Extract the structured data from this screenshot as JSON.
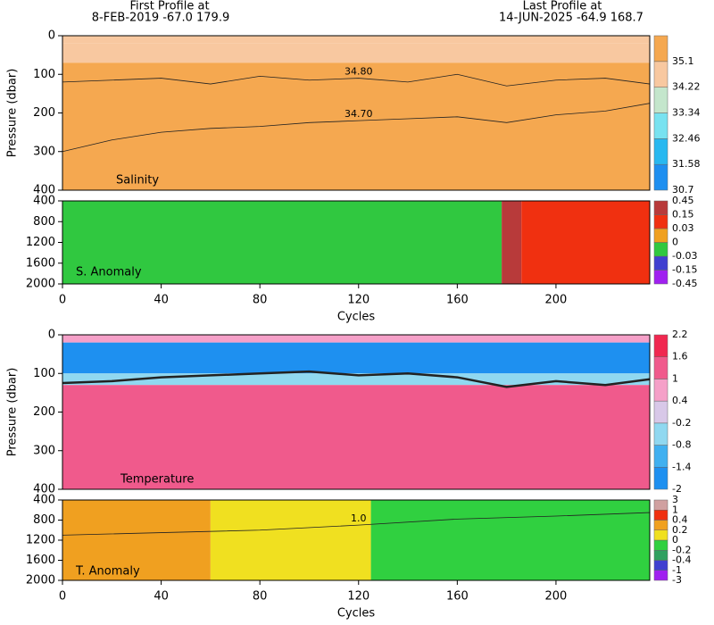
{
  "header": {
    "first_label": "First Profile at",
    "first_value": "8-FEB-2019    -67.0  179.9",
    "last_label": "Last Profile at",
    "last_value": "14-JUN-2025    -64.9  168.7"
  },
  "chart_data": [
    {
      "type": "section",
      "title": "Salinity",
      "ylabel": "Pressure (dbar)",
      "xlim": [
        0,
        238
      ],
      "ylim": [
        0,
        400
      ],
      "yticks": [
        0,
        100,
        200,
        300,
        400
      ],
      "colorbar": {
        "levels": [
          30.7,
          31.58,
          32.46,
          33.34,
          34.22,
          35.1
        ],
        "colors": [
          "#1e8ff0",
          "#28b8f0",
          "#78e2f0",
          "#c4e6cc",
          "#f8c8a0",
          "#f5a850"
        ]
      },
      "depth_bands": {
        "edges": [
          0,
          20,
          70,
          400
        ],
        "values": [
          34.5,
          34.8,
          35.2
        ]
      },
      "contours": [
        {
          "label": "34.70",
          "x": [
            0,
            20,
            40,
            60,
            80,
            100,
            120,
            140,
            160,
            180,
            200,
            220,
            238
          ],
          "y": [
            300,
            270,
            250,
            240,
            235,
            225,
            220,
            215,
            210,
            225,
            205,
            195,
            175
          ]
        },
        {
          "label": "34.80",
          "x": [
            0,
            20,
            40,
            60,
            80,
            100,
            120,
            140,
            160,
            180,
            200,
            220,
            238
          ],
          "y": [
            120,
            115,
            110,
            125,
            105,
            115,
            110,
            120,
            100,
            130,
            115,
            110,
            125
          ]
        }
      ]
    },
    {
      "type": "section",
      "title": "S. Anomaly",
      "xlabel": "Cycles",
      "xlim": [
        0,
        238
      ],
      "ylim": [
        400,
        2000
      ],
      "yticks": [
        400,
        800,
        1200,
        1600,
        2000
      ],
      "xticks": [
        0,
        40,
        80,
        120,
        160,
        200
      ],
      "colorbar": {
        "levels": [
          -0.45,
          -0.15,
          -0.03,
          0,
          0.03,
          0.15,
          0.45
        ],
        "colors": [
          "#a020f0",
          "#4040d0",
          "#30c840",
          "#f0a020",
          "#f03010",
          "#b83a3a"
        ]
      },
      "cycle_bands": {
        "edges": [
          0,
          178,
          186,
          238
        ],
        "values": [
          -0.01,
          0.2,
          0.04
        ]
      }
    },
    {
      "type": "section",
      "title": "Temperature",
      "ylabel": "Pressure (dbar)",
      "xlim": [
        0,
        238
      ],
      "ylim": [
        0,
        400
      ],
      "yticks": [
        0,
        100,
        200,
        300,
        400
      ],
      "colorbar": {
        "levels": [
          -2,
          -1.4,
          -0.8,
          -0.2,
          0.4,
          1,
          1.6,
          2.2
        ],
        "colors": [
          "#1e90f0",
          "#40b0f0",
          "#90d8f0",
          "#d8c8e8",
          "#f5a0c8",
          "#f05a8c",
          "#f02850"
        ]
      },
      "depth_bands": {
        "edges": [
          0,
          20,
          100,
          130,
          400
        ],
        "values": [
          0.5,
          -1.6,
          -0.5,
          1.1
        ]
      },
      "contours": [
        {
          "bold": true,
          "x": [
            0,
            20,
            40,
            60,
            80,
            100,
            120,
            140,
            160,
            180,
            200,
            220,
            238
          ],
          "y": [
            125,
            120,
            110,
            105,
            100,
            95,
            105,
            100,
            110,
            135,
            120,
            130,
            115
          ]
        }
      ]
    },
    {
      "type": "section",
      "title": "T. Anomaly",
      "xlabel": "Cycles",
      "xlim": [
        0,
        238
      ],
      "ylim": [
        400,
        2000
      ],
      "yticks": [
        400,
        800,
        1200,
        1600,
        2000
      ],
      "xticks": [
        0,
        40,
        80,
        120,
        160,
        200
      ],
      "colorbar": {
        "levels": [
          -3,
          -1,
          -0.4,
          -0.2,
          0,
          0.2,
          0.4,
          1,
          3
        ],
        "colors": [
          "#a020f0",
          "#4040d0",
          "#30a060",
          "#30d040",
          "#f0e020",
          "#f0a020",
          "#f03010",
          "#d0a0a0"
        ]
      },
      "cycle_bands": {
        "edges": [
          0,
          60,
          125,
          238
        ],
        "values": [
          0.3,
          0.1,
          -0.1
        ]
      },
      "contours": [
        {
          "label": "1.0",
          "x": [
            0,
            40,
            80,
            120,
            160,
            200,
            238
          ],
          "y": [
            1100,
            1050,
            1000,
            900,
            780,
            720,
            650
          ]
        }
      ]
    }
  ]
}
